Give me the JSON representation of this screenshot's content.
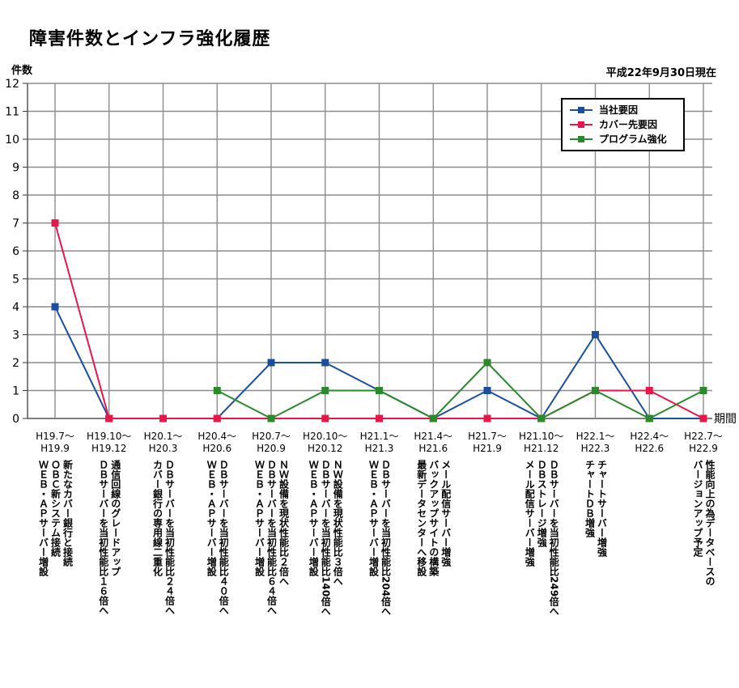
{
  "chart_data": {
    "type": "line",
    "title": "障害件数とインフラ強化履歴",
    "ylabel": "件数",
    "xlabel": "期間",
    "as_of": "平成22年9月30日現在",
    "ylim": [
      0,
      12
    ],
    "grid": true,
    "legend_position": "top-right",
    "categories": [
      [
        "H19.7～",
        "H19.9"
      ],
      [
        "H19.10～",
        "H19.12"
      ],
      [
        "H20.1～",
        "H20.3"
      ],
      [
        "H20.4～",
        "H20.6"
      ],
      [
        "H20.7～",
        "H20.9"
      ],
      [
        "H20.10～",
        "H20.12"
      ],
      [
        "H21.1～",
        "H21.3"
      ],
      [
        "H21.4～",
        "H21.6"
      ],
      [
        "H21.7～",
        "H21.9"
      ],
      [
        "H21.10～",
        "H21.12"
      ],
      [
        "H22.1～",
        "H22.3"
      ],
      [
        "H22.4～",
        "H22.6"
      ],
      [
        "H22.7～",
        "H22.9"
      ]
    ],
    "series": [
      {
        "name": "当社要因",
        "color": "#1a4fa0",
        "values": [
          4,
          0,
          0,
          0,
          2,
          2,
          1,
          0,
          1,
          0,
          3,
          0,
          0
        ]
      },
      {
        "name": "カバー先要因",
        "color": "#e8174a",
        "values": [
          7,
          0,
          0,
          0,
          0,
          0,
          0,
          0,
          0,
          0,
          1,
          1,
          0
        ]
      },
      {
        "name": "プログラム強化",
        "color": "#2a8a2a",
        "values": [
          null,
          null,
          null,
          1,
          0,
          1,
          1,
          0,
          2,
          0,
          1,
          0,
          1
        ]
      }
    ],
    "annotations": [
      [
        "新たなカバー銀行と接続",
        "ＯＢＣ新システム接続",
        "ＷＥＢ・ＡＰサーバー増設"
      ],
      [
        "通信回線のグレードアップ",
        "ＤＢサーバーを当初性能比１６倍へ"
      ],
      [
        "ＤＢサーバーを当初性能比２４倍へ",
        "カバー銀行の専用線二重化"
      ],
      [
        "ＤＢサーバーを当初性能比４０倍へ",
        "ＷＥＢ・ＡＰサーバー増設"
      ],
      [
        "ＮＷ設備を現状性能比２倍へ",
        "ＤＢサーバーを当初性能比６４倍へ",
        "ＷＥＢ・ＡＰサーバー増設"
      ],
      [
        "ＮＷ設備を現状性能比３倍へ",
        "ＤＢサーバーを当初性能比140倍へ",
        "ＷＥＢ・ＡＰサーバー増設"
      ],
      [
        "ＤＢサーバーを当初性能比204倍へ",
        "ＷＥＢ・ＡＰサーバー増設"
      ],
      [
        "メール配信サーバー増強",
        "バックアップサイトの構築",
        "最新データセンターへ移設"
      ],
      [],
      [
        "ＤＢサーバーを当初性能比249倍へ",
        "ＤＢストレージ増強",
        "メール配信サーバー増強"
      ],
      [
        "チャートサーバー増強",
        "チャートＤＢ増強"
      ],
      [],
      [
        "性能向上の為データベースの",
        "バージョンアップ予定"
      ]
    ]
  }
}
